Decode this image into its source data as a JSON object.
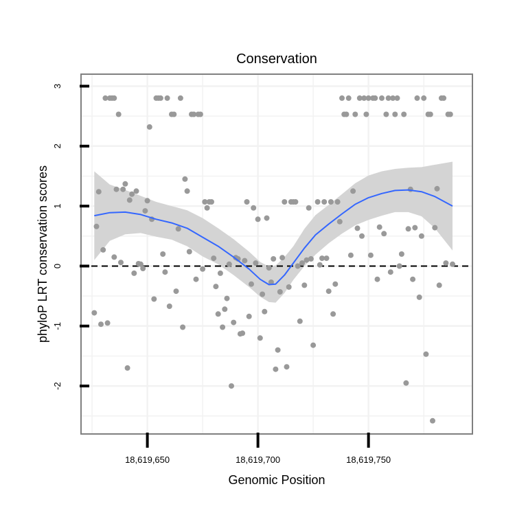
{
  "chart_data": {
    "type": "scatter",
    "title": "Conservation",
    "xlabel": "Genomic Position",
    "ylabel": "phyloP LRT conservation scores",
    "xlim": [
      18619620,
      18619797
    ],
    "ylim": [
      -2.8,
      3.2
    ],
    "x_ticks": [
      18619650,
      18619700,
      18619750
    ],
    "x_tick_labels": [
      "18,619,650",
      "18,619,700",
      "18,619,750"
    ],
    "y_ticks": [
      -2,
      -1,
      0,
      1,
      2,
      3
    ],
    "y_tick_labels": [
      "-2",
      "-1",
      "0",
      "1",
      "2",
      "3"
    ],
    "grid": true,
    "reference_line": {
      "y": 0,
      "style": "dashed"
    },
    "colors": {
      "points": "#999999",
      "smooth_line": "#3366ff",
      "confidence_band": "#d4d4d4",
      "grid": "#f2f2f2",
      "panel_border": "#7f7f7f",
      "reference_line": "#000000"
    },
    "points": [
      [
        18619626,
        -0.78
      ],
      [
        18619627,
        0.66
      ],
      [
        18619628,
        1.24
      ],
      [
        18619629,
        -0.97
      ],
      [
        18619630,
        0.27
      ],
      [
        18619631,
        2.8
      ],
      [
        18619632,
        -0.95
      ],
      [
        18619633,
        2.8
      ],
      [
        18619634,
        2.8
      ],
      [
        18619635,
        2.8
      ],
      [
        18619635,
        0.15
      ],
      [
        18619636,
        1.28
      ],
      [
        18619637,
        2.53
      ],
      [
        18619638,
        0.06
      ],
      [
        18619639,
        1.28
      ],
      [
        18619640,
        1.37
      ],
      [
        18619641,
        -1.7
      ],
      [
        18619642,
        1.1
      ],
      [
        18619643,
        1.2
      ],
      [
        18619644,
        -0.12
      ],
      [
        18619645,
        1.25
      ],
      [
        18619646,
        0.04
      ],
      [
        18619647,
        0.03
      ],
      [
        18619648,
        -0.04
      ],
      [
        18619649,
        0.92
      ],
      [
        18619650,
        1.09
      ],
      [
        18619651,
        2.32
      ],
      [
        18619652,
        0.78
      ],
      [
        18619653,
        -0.55
      ],
      [
        18619654,
        2.8
      ],
      [
        18619655,
        2.8
      ],
      [
        18619656,
        2.8
      ],
      [
        18619657,
        0.2
      ],
      [
        18619658,
        -0.1
      ],
      [
        18619659,
        2.8
      ],
      [
        18619660,
        -0.67
      ],
      [
        18619661,
        2.53
      ],
      [
        18619662,
        2.53
      ],
      [
        18619663,
        -0.42
      ],
      [
        18619664,
        0.62
      ],
      [
        18619665,
        2.8
      ],
      [
        18619666,
        -1.02
      ],
      [
        18619667,
        1.45
      ],
      [
        18619668,
        1.25
      ],
      [
        18619669,
        0.24
      ],
      [
        18619670,
        2.53
      ],
      [
        18619671,
        2.53
      ],
      [
        18619672,
        -0.22
      ],
      [
        18619673,
        2.53
      ],
      [
        18619674,
        2.53
      ],
      [
        18619675,
        -0.05
      ],
      [
        18619676,
        1.07
      ],
      [
        18619677,
        0.97
      ],
      [
        18619678,
        1.07
      ],
      [
        18619679,
        1.07
      ],
      [
        18619680,
        0.13
      ],
      [
        18619681,
        -0.34
      ],
      [
        18619682,
        -0.8
      ],
      [
        18619683,
        -0.12
      ],
      [
        18619684,
        -1.02
      ],
      [
        18619685,
        -0.72
      ],
      [
        18619686,
        -0.54
      ],
      [
        18619687,
        0.03
      ],
      [
        18619688,
        -2.0
      ],
      [
        18619689,
        -0.94
      ],
      [
        18619690,
        0.14
      ],
      [
        18619691,
        0.12
      ],
      [
        18619692,
        -1.13
      ],
      [
        18619693,
        -1.12
      ],
      [
        18619694,
        0.09
      ],
      [
        18619695,
        1.07
      ],
      [
        18619696,
        -0.84
      ],
      [
        18619697,
        -0.3
      ],
      [
        18619698,
        0.97
      ],
      [
        18619699,
        0.05
      ],
      [
        18619700,
        0.78
      ],
      [
        18619701,
        -1.2
      ],
      [
        18619702,
        -0.47
      ],
      [
        18619703,
        -0.76
      ],
      [
        18619704,
        0.8
      ],
      [
        18619705,
        -0.03
      ],
      [
        18619706,
        -0.27
      ],
      [
        18619707,
        0.12
      ],
      [
        18619708,
        -1.72
      ],
      [
        18619709,
        -1.4
      ],
      [
        18619710,
        -0.43
      ],
      [
        18619711,
        0.14
      ],
      [
        18619712,
        1.07
      ],
      [
        18619713,
        -1.68
      ],
      [
        18619714,
        -0.35
      ],
      [
        18619715,
        1.07
      ],
      [
        18619716,
        1.07
      ],
      [
        18619717,
        1.07
      ],
      [
        18619718,
        0.0
      ],
      [
        18619719,
        -0.92
      ],
      [
        18619720,
        0.05
      ],
      [
        18619721,
        -0.32
      ],
      [
        18619722,
        0.1
      ],
      [
        18619723,
        0.97
      ],
      [
        18619724,
        0.12
      ],
      [
        18619725,
        -1.32
      ],
      [
        18619727,
        1.07
      ],
      [
        18619728,
        0.02
      ],
      [
        18619729,
        0.13
      ],
      [
        18619730,
        1.07
      ],
      [
        18619731,
        0.13
      ],
      [
        18619732,
        -0.42
      ],
      [
        18619733,
        1.07
      ],
      [
        18619734,
        -0.8
      ],
      [
        18619735,
        -0.3
      ],
      [
        18619736,
        1.07
      ],
      [
        18619737,
        0.74
      ],
      [
        18619738,
        2.8
      ],
      [
        18619739,
        2.53
      ],
      [
        18619740,
        2.53
      ],
      [
        18619741,
        2.8
      ],
      [
        18619742,
        0.18
      ],
      [
        18619743,
        1.25
      ],
      [
        18619744,
        2.53
      ],
      [
        18619745,
        0.63
      ],
      [
        18619746,
        2.8
      ],
      [
        18619747,
        0.5
      ],
      [
        18619748,
        2.8
      ],
      [
        18619749,
        2.53
      ],
      [
        18619750,
        2.8
      ],
      [
        18619751,
        0.18
      ],
      [
        18619752,
        2.8
      ],
      [
        18619753,
        2.8
      ],
      [
        18619754,
        -0.22
      ],
      [
        18619755,
        0.65
      ],
      [
        18619756,
        2.8
      ],
      [
        18619757,
        0.54
      ],
      [
        18619758,
        2.53
      ],
      [
        18619759,
        2.8
      ],
      [
        18619760,
        -0.1
      ],
      [
        18619761,
        2.8
      ],
      [
        18619762,
        2.53
      ],
      [
        18619763,
        2.8
      ],
      [
        18619764,
        0.0
      ],
      [
        18619765,
        0.2
      ],
      [
        18619766,
        2.53
      ],
      [
        18619767,
        -1.95
      ],
      [
        18619768,
        0.62
      ],
      [
        18619769,
        1.28
      ],
      [
        18619770,
        -0.22
      ],
      [
        18619771,
        0.64
      ],
      [
        18619772,
        2.8
      ],
      [
        18619773,
        -0.52
      ],
      [
        18619774,
        0.5
      ],
      [
        18619775,
        2.8
      ],
      [
        18619776,
        -1.47
      ],
      [
        18619777,
        2.53
      ],
      [
        18619778,
        2.53
      ],
      [
        18619779,
        -2.58
      ],
      [
        18619780,
        0.64
      ],
      [
        18619781,
        1.29
      ],
      [
        18619782,
        -0.32
      ],
      [
        18619783,
        2.8
      ],
      [
        18619784,
        2.8
      ],
      [
        18619785,
        0.05
      ],
      [
        18619786,
        2.53
      ],
      [
        18619787,
        2.53
      ],
      [
        18619788,
        0.03
      ]
    ],
    "smooth_curve": [
      [
        18619626,
        0.84
      ],
      [
        18619633,
        0.89
      ],
      [
        18619640,
        0.9
      ],
      [
        18619647,
        0.86
      ],
      [
        18619654,
        0.78
      ],
      [
        18619661,
        0.72
      ],
      [
        18619668,
        0.63
      ],
      [
        18619675,
        0.48
      ],
      [
        18619682,
        0.33
      ],
      [
        18619689,
        0.15
      ],
      [
        18619696,
        -0.05
      ],
      [
        18619701,
        -0.22
      ],
      [
        18619705,
        -0.31
      ],
      [
        18619708,
        -0.3
      ],
      [
        18619712,
        -0.15
      ],
      [
        18619716,
        0.05
      ],
      [
        18619721,
        0.3
      ],
      [
        18619726,
        0.52
      ],
      [
        18619732,
        0.7
      ],
      [
        18619738,
        0.87
      ],
      [
        18619744,
        1.03
      ],
      [
        18619750,
        1.14
      ],
      [
        18619756,
        1.21
      ],
      [
        18619762,
        1.26
      ],
      [
        18619768,
        1.27
      ],
      [
        18619774,
        1.24
      ],
      [
        18619780,
        1.16
      ],
      [
        18619788,
        1.0
      ]
    ],
    "band_upper": [
      [
        18619626,
        1.58
      ],
      [
        18619633,
        1.36
      ],
      [
        18619640,
        1.27
      ],
      [
        18619647,
        1.17
      ],
      [
        18619654,
        1.07
      ],
      [
        18619661,
        1.0
      ],
      [
        18619668,
        0.93
      ],
      [
        18619675,
        0.8
      ],
      [
        18619682,
        0.63
      ],
      [
        18619689,
        0.45
      ],
      [
        18619696,
        0.24
      ],
      [
        18619701,
        0.07
      ],
      [
        18619705,
        -0.01
      ],
      [
        18619708,
        0.01
      ],
      [
        18619712,
        0.15
      ],
      [
        18619716,
        0.33
      ],
      [
        18619721,
        0.62
      ],
      [
        18619726,
        0.85
      ],
      [
        18619732,
        1.02
      ],
      [
        18619738,
        1.2
      ],
      [
        18619744,
        1.38
      ],
      [
        18619750,
        1.51
      ],
      [
        18619756,
        1.58
      ],
      [
        18619762,
        1.62
      ],
      [
        18619768,
        1.64
      ],
      [
        18619774,
        1.65
      ],
      [
        18619780,
        1.69
      ],
      [
        18619788,
        1.74
      ]
    ],
    "band_lower": [
      [
        18619626,
        0.1
      ],
      [
        18619633,
        0.42
      ],
      [
        18619640,
        0.53
      ],
      [
        18619647,
        0.55
      ],
      [
        18619654,
        0.49
      ],
      [
        18619661,
        0.44
      ],
      [
        18619668,
        0.33
      ],
      [
        18619675,
        0.16
      ],
      [
        18619682,
        0.03
      ],
      [
        18619689,
        -0.15
      ],
      [
        18619696,
        -0.35
      ],
      [
        18619701,
        -0.51
      ],
      [
        18619705,
        -0.6
      ],
      [
        18619708,
        -0.61
      ],
      [
        18619712,
        -0.45
      ],
      [
        18619716,
        -0.23
      ],
      [
        18619721,
        0.0
      ],
      [
        18619726,
        0.19
      ],
      [
        18619732,
        0.38
      ],
      [
        18619738,
        0.54
      ],
      [
        18619744,
        0.68
      ],
      [
        18619750,
        0.77
      ],
      [
        18619756,
        0.84
      ],
      [
        18619762,
        0.9
      ],
      [
        18619768,
        0.9
      ],
      [
        18619774,
        0.83
      ],
      [
        18619780,
        0.63
      ],
      [
        18619788,
        0.26
      ]
    ]
  }
}
